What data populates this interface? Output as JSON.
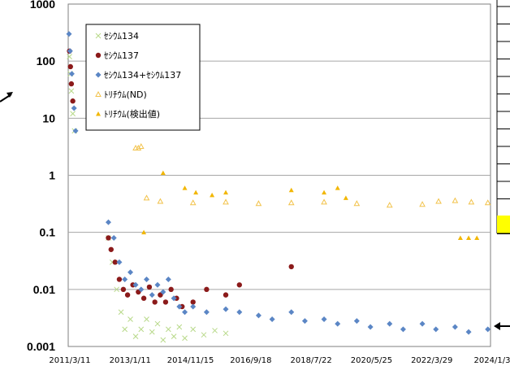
{
  "chart_data": {
    "type": "scatter",
    "yscale": "log",
    "ylim": [
      0.001,
      1000
    ],
    "xlim": [
      "2011-03-11",
      "2024-01-31"
    ],
    "grid": true,
    "legend_position": "top-left",
    "y_tick_labels": [
      "1000",
      "100",
      "10",
      "1",
      "0.1",
      "0.01",
      "0.001"
    ],
    "x_tick_labels": [
      "2011/3/11",
      "2013/1/11",
      "2014/11/15",
      "2016/9/18",
      "2018/7/22",
      "2020/5/25",
      "2022/3/29",
      "2024/1/3"
    ],
    "series": [
      {
        "name": "ｾｼｳﾑ134",
        "marker": "x",
        "color": "#b8d98a",
        "points": [
          [
            "2011-03-25",
            120
          ],
          [
            "2011-04-05",
            60
          ],
          [
            "2011-04-15",
            30
          ],
          [
            "2011-05-01",
            12
          ],
          [
            "2011-05-20",
            6
          ],
          [
            "2012-06-01",
            0.08
          ],
          [
            "2012-07-15",
            0.03
          ],
          [
            "2012-09-01",
            0.01
          ],
          [
            "2012-10-20",
            0.004
          ],
          [
            "2012-12-01",
            0.002
          ],
          [
            "2013-02-01",
            0.003
          ],
          [
            "2013-04-01",
            0.0015
          ],
          [
            "2013-06-01",
            0.002
          ],
          [
            "2013-08-01",
            0.003
          ],
          [
            "2013-10-01",
            0.0018
          ],
          [
            "2013-12-01",
            0.0025
          ],
          [
            "2014-02-01",
            0.0013
          ],
          [
            "2014-04-01",
            0.002
          ],
          [
            "2014-06-01",
            0.0015
          ],
          [
            "2014-08-01",
            0.0022
          ],
          [
            "2014-10-01",
            0.0014
          ],
          [
            "2015-01-01",
            0.002
          ],
          [
            "2015-05-01",
            0.0016
          ],
          [
            "2015-09-01",
            0.0019
          ],
          [
            "2016-01-01",
            0.0017
          ]
        ]
      },
      {
        "name": "ｾｼｳﾑ137",
        "marker": "circle",
        "color": "#8b1a1a",
        "points": [
          [
            "2011-03-25",
            150
          ],
          [
            "2011-04-05",
            80
          ],
          [
            "2011-04-15",
            40
          ],
          [
            "2011-05-01",
            20
          ],
          [
            "2012-06-01",
            0.08
          ],
          [
            "2012-07-01",
            0.05
          ],
          [
            "2012-08-15",
            0.03
          ],
          [
            "2012-10-01",
            0.015
          ],
          [
            "2012-11-15",
            0.01
          ],
          [
            "2013-01-01",
            0.008
          ],
          [
            "2013-03-01",
            0.012
          ],
          [
            "2013-05-01",
            0.009
          ],
          [
            "2013-07-01",
            0.007
          ],
          [
            "2013-09-01",
            0.011
          ],
          [
            "2013-11-01",
            0.006
          ],
          [
            "2014-01-01",
            0.008
          ],
          [
            "2014-03-01",
            0.006
          ],
          [
            "2014-05-01",
            0.01
          ],
          [
            "2014-07-01",
            0.007
          ],
          [
            "2014-09-01",
            0.005
          ],
          [
            "2015-01-01",
            0.006
          ],
          [
            "2015-06-01",
            0.01
          ],
          [
            "2016-01-01",
            0.008
          ],
          [
            "2016-06-01",
            0.012
          ],
          [
            "2018-01-01",
            0.025
          ]
        ]
      },
      {
        "name": "ｾｼｳﾑ134+ｾｼｳﾑ137",
        "marker": "diamond",
        "color": "#5b86c5",
        "points": [
          [
            "2011-03-20",
            300
          ],
          [
            "2011-04-01",
            150
          ],
          [
            "2011-04-20",
            60
          ],
          [
            "2011-05-15",
            15
          ],
          [
            "2011-06-01",
            6
          ],
          [
            "2012-06-01",
            0.15
          ],
          [
            "2012-08-01",
            0.08
          ],
          [
            "2012-10-01",
            0.03
          ],
          [
            "2012-12-01",
            0.015
          ],
          [
            "2013-02-01",
            0.02
          ],
          [
            "2013-04-01",
            0.012
          ],
          [
            "2013-06-01",
            0.01
          ],
          [
            "2013-08-01",
            0.015
          ],
          [
            "2013-10-01",
            0.008
          ],
          [
            "2013-12-01",
            0.012
          ],
          [
            "2014-02-01",
            0.009
          ],
          [
            "2014-04-01",
            0.015
          ],
          [
            "2014-06-01",
            0.007
          ],
          [
            "2014-08-01",
            0.005
          ],
          [
            "2014-10-01",
            0.004
          ],
          [
            "2015-01-01",
            0.005
          ],
          [
            "2015-06-01",
            0.004
          ],
          [
            "2016-01-01",
            0.0045
          ],
          [
            "2016-06-01",
            0.004
          ],
          [
            "2017-01-01",
            0.0035
          ],
          [
            "2017-06-01",
            0.003
          ],
          [
            "2018-01-01",
            0.004
          ],
          [
            "2018-06-01",
            0.0028
          ],
          [
            "2019-01-01",
            0.003
          ],
          [
            "2019-06-01",
            0.0025
          ],
          [
            "2020-01-01",
            0.0028
          ],
          [
            "2020-06-01",
            0.0022
          ],
          [
            "2021-01-01",
            0.0025
          ],
          [
            "2021-06-01",
            0.002
          ],
          [
            "2022-01-01",
            0.0025
          ],
          [
            "2022-06-01",
            0.002
          ],
          [
            "2023-01-01",
            0.0022
          ],
          [
            "2023-06-01",
            0.0018
          ],
          [
            "2024-01-01",
            0.002
          ]
        ]
      },
      {
        "name": "ﾄﾘﾁｳﾑ(ND)",
        "marker": "triangle-open",
        "color": "#f2c24a",
        "points": [
          [
            "2013-04-01",
            3
          ],
          [
            "2013-05-01",
            3
          ],
          [
            "2013-06-01",
            3.2
          ],
          [
            "2013-08-01",
            0.4
          ],
          [
            "2014-01-01",
            0.35
          ],
          [
            "2015-01-01",
            0.33
          ],
          [
            "2016-01-01",
            0.34
          ],
          [
            "2017-01-01",
            0.32
          ],
          [
            "2018-01-01",
            0.33
          ],
          [
            "2019-01-01",
            0.34
          ],
          [
            "2020-01-01",
            0.32
          ],
          [
            "2021-01-01",
            0.3
          ],
          [
            "2022-01-01",
            0.31
          ],
          [
            "2022-07-01",
            0.35
          ],
          [
            "2023-01-01",
            0.36
          ],
          [
            "2023-07-01",
            0.34
          ],
          [
            "2024-01-01",
            0.33
          ]
        ]
      },
      {
        "name": "ﾄﾘﾁｳﾑ(検出値)",
        "marker": "triangle",
        "color": "#f2b705",
        "points": [
          [
            "2013-07-01",
            0.1
          ],
          [
            "2014-02-01",
            1.1
          ],
          [
            "2014-10-01",
            0.6
          ],
          [
            "2015-02-01",
            0.5
          ],
          [
            "2015-08-01",
            0.45
          ],
          [
            "2016-01-01",
            0.5
          ],
          [
            "2018-01-01",
            0.55
          ],
          [
            "2019-01-01",
            0.5
          ],
          [
            "2019-06-01",
            0.6
          ],
          [
            "2019-09-01",
            0.4
          ],
          [
            "2023-03-01",
            0.08
          ],
          [
            "2023-06-01",
            0.08
          ],
          [
            "2023-09-01",
            0.08
          ]
        ]
      }
    ]
  }
}
